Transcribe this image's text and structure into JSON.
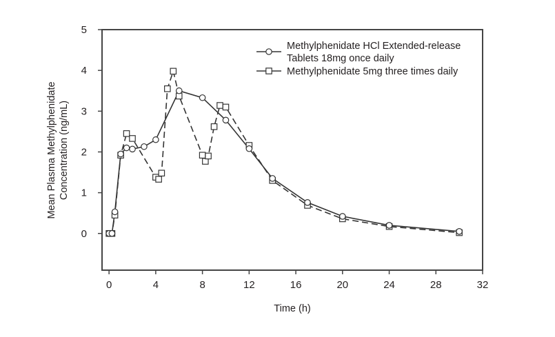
{
  "chart_data": {
    "type": "line",
    "title": "",
    "xlabel": "Time (h)",
    "ylabel_lines": [
      "Mean Plasma Methylphenidate",
      "Concentration (ng/mL)"
    ],
    "xlim": [
      -0.6,
      32
    ],
    "ylim": [
      -0.9,
      5
    ],
    "xticks": [
      0,
      4,
      8,
      12,
      16,
      20,
      24,
      28,
      32
    ],
    "yticks": [
      0,
      1,
      2,
      3,
      4,
      5
    ],
    "grid": false,
    "legend_placement": "top-right",
    "series": [
      {
        "name_lines": [
          "Methylphenidate HCl Extended-release",
          "Tablets 18mg once daily"
        ],
        "marker": "circle",
        "line": "solid",
        "x": [
          0,
          0.25,
          0.5,
          1,
          1.5,
          2,
          3,
          4,
          6,
          8,
          10,
          12,
          14,
          17,
          20,
          24,
          30
        ],
        "y": [
          0,
          0,
          0.53,
          1.95,
          2.1,
          2.07,
          2.13,
          2.3,
          3.5,
          3.33,
          2.78,
          2.08,
          1.35,
          0.76,
          0.42,
          0.2,
          0.05
        ]
      },
      {
        "name_lines": [
          "Methylphenidate 5mg three times daily"
        ],
        "marker": "square",
        "line": "dashed",
        "x": [
          0,
          0.25,
          0.5,
          1,
          1.5,
          2,
          4,
          4.25,
          4.5,
          5,
          5.5,
          6,
          8,
          8.25,
          8.5,
          9,
          9.5,
          10,
          12,
          14,
          17,
          20,
          24,
          30
        ],
        "y": [
          0,
          0,
          0.45,
          1.92,
          2.45,
          2.33,
          1.38,
          1.33,
          1.48,
          3.55,
          3.98,
          3.37,
          1.92,
          1.77,
          1.9,
          2.62,
          3.14,
          3.1,
          2.16,
          1.3,
          0.69,
          0.36,
          0.17,
          0.02
        ]
      }
    ]
  }
}
